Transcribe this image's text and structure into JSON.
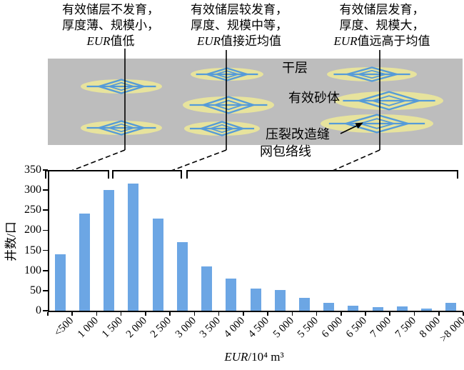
{
  "callouts": [
    {
      "line1": "有效储层不发育，",
      "line2": "厚度薄、规模小，",
      "eur": "EUR",
      "line3": "值低"
    },
    {
      "line1": "有效储层较发育，",
      "line2": "厚度、规模中等，",
      "eur": "EUR",
      "line3": "值接近均值"
    },
    {
      "line1": "有效储层发育，",
      "line2": "厚度、规模大，",
      "eur": "EUR",
      "line3": "值远高于均值"
    }
  ],
  "diagram": {
    "dry_layer_label": "干层",
    "sand_body_label": "有效砂体",
    "fracture_label_line1": "压裂改造缝",
    "fracture_label_line2": "网包络线",
    "colors": {
      "layer_gray": "#bdbdbd",
      "sand_yellow": "#e7e39d",
      "fracture_blue": "#569bd8"
    }
  },
  "chart_data": {
    "type": "bar",
    "categories": [
      "<500",
      "1 000",
      "1 500",
      "2 000",
      "2 500",
      "3 000",
      "3 500",
      "4 000",
      "4 500",
      "5 000",
      "5 500",
      "6 000",
      "6 500",
      "7 000",
      "7 500",
      "8 000",
      ">8 000"
    ],
    "values": [
      140,
      242,
      300,
      316,
      230,
      170,
      110,
      80,
      55,
      52,
      32,
      20,
      13,
      8,
      11,
      5,
      20
    ],
    "title": "",
    "xlabel": "EUR/10⁴ m³",
    "xlabel_eur": "EUR",
    "xlabel_unit": "/10⁴ m³",
    "ylabel": "井数/口",
    "ylim": [
      0,
      350
    ],
    "yticks": [
      0,
      50,
      100,
      150,
      200,
      250,
      300,
      350
    ],
    "bar_color": "#6ca6e4",
    "grid": false,
    "legend": false
  }
}
